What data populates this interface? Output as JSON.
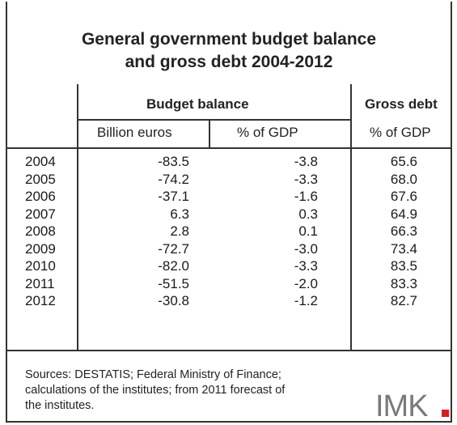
{
  "chart_data": {
    "type": "table",
    "title_lines": [
      "General government budget balance",
      "and gross debt 2004-2012"
    ],
    "group_headers": {
      "budget": "Budget balance",
      "debt": "Gross debt"
    },
    "column_headers": {
      "billion": "Billion euros",
      "pct_gdp": "% of GDP",
      "debt_pct": "% of GDP"
    },
    "rows": [
      {
        "year": "2004",
        "billion": "-83.5",
        "pct": "-3.8",
        "debt": "65.6"
      },
      {
        "year": "2005",
        "billion": "-74.2",
        "pct": "-3.3",
        "debt": "68.0"
      },
      {
        "year": "2006",
        "billion": "-37.1",
        "pct": "-1.6",
        "debt": "67.6"
      },
      {
        "year": "2007",
        "billion": "6.3",
        "pct": "0.3",
        "debt": "64.9"
      },
      {
        "year": "2008",
        "billion": "2.8",
        "pct": "0.1",
        "debt": "66.3"
      },
      {
        "year": "2009",
        "billion": "-72.7",
        "pct": "-3.0",
        "debt": "73.4"
      },
      {
        "year": "2010",
        "billion": "-82.0",
        "pct": "-3.3",
        "debt": "83.5"
      },
      {
        "year": "2011",
        "billion": "-51.5",
        "pct": "-2.0",
        "debt": "83.3"
      },
      {
        "year": "2012",
        "billion": "-30.8",
        "pct": "-1.2",
        "debt": "82.7"
      }
    ]
  },
  "source_lines": [
    "Sources: DESTATIS; Federal Ministry of Finance;",
    "calculations of the institutes; from 2011 forecast of",
    "the institutes."
  ],
  "logo": {
    "text": "IMK",
    "text_color": "#7a7a7a",
    "accent_color": "#d0202a"
  }
}
